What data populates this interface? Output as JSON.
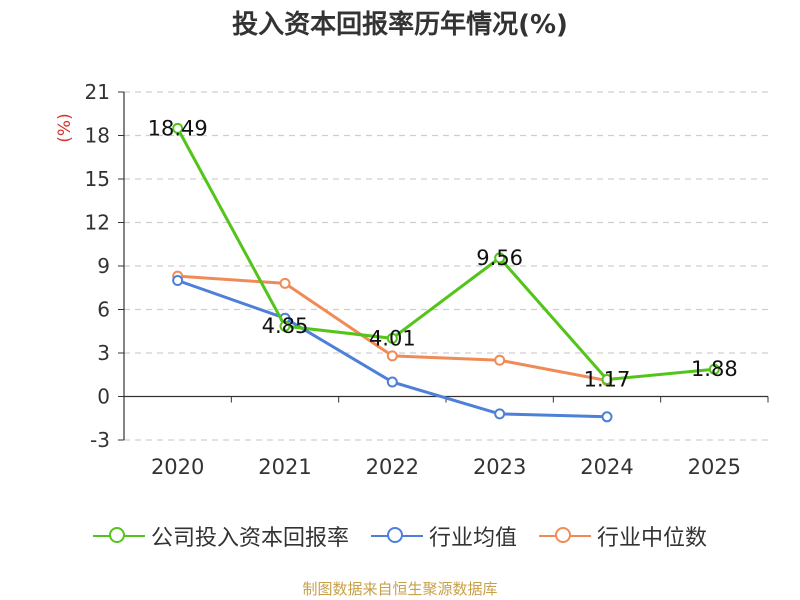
{
  "chart_data": {
    "type": "line",
    "title": "投入资本回报率历年情况(%)",
    "ylabel": "(%)",
    "ylim": [
      -3,
      21
    ],
    "yticks": [
      -3,
      0,
      3,
      6,
      9,
      12,
      15,
      18,
      21
    ],
    "categories": [
      "2020",
      "2021",
      "2022",
      "2023",
      "2024",
      "2025"
    ],
    "grid": true,
    "legend_position": "bottom",
    "series": [
      {
        "name": "公司投入资本回报率",
        "color": "#52c41a",
        "values": [
          18.49,
          4.85,
          4.01,
          9.56,
          1.17,
          1.88
        ],
        "labels": [
          "18.49",
          "4.85",
          "4.01",
          "9.56",
          "1.17",
          "1.88"
        ]
      },
      {
        "name": "行业均值",
        "color": "#4e7fd9",
        "values": [
          8.0,
          5.4,
          1.0,
          -1.2,
          -1.4,
          null
        ],
        "labels": []
      },
      {
        "name": "行业中位数",
        "color": "#f08b57",
        "values": [
          8.3,
          7.8,
          2.8,
          2.5,
          1.1,
          null
        ],
        "labels": []
      }
    ]
  },
  "source": "制图数据来自恒生聚源数据库"
}
